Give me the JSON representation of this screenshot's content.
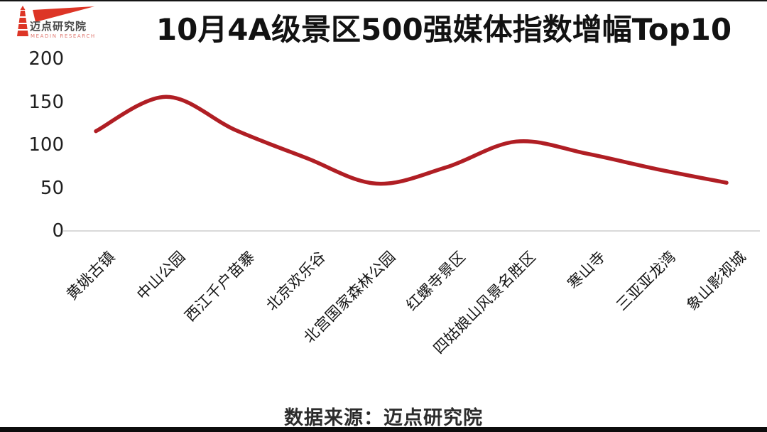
{
  "header": {
    "logo": {
      "icon": "lighthouse-flag-icon",
      "name": "迈点研究院",
      "tagline": "MEADIN RESEARCH"
    }
  },
  "chart_data": {
    "type": "line",
    "title": "10月4A级景区500强媒体指数增幅Top10",
    "categories": [
      "黄姚古镇",
      "中山公园",
      "西江千户苗寨",
      "北京欢乐谷",
      "北宫国家森林公园",
      "红螺寺景区",
      "四姑娘山风景名胜区",
      "寒山寺",
      "三亚亚龙湾",
      "象山影视城"
    ],
    "values": [
      116,
      156,
      117,
      85,
      55,
      74,
      104,
      90,
      72,
      56
    ],
    "xlabel": "",
    "ylabel": "",
    "ylim": [
      0,
      200
    ],
    "yticks": [
      200,
      150,
      100,
      50,
      0
    ],
    "grid": false,
    "legend": false,
    "smooth": true,
    "line_color": "#b01e24"
  },
  "footer": {
    "source": "数据来源：迈点研究院"
  },
  "colors": {
    "line": "#b01e24",
    "logo_red": "#dd3526",
    "axis_line": "#d9d9d9"
  }
}
